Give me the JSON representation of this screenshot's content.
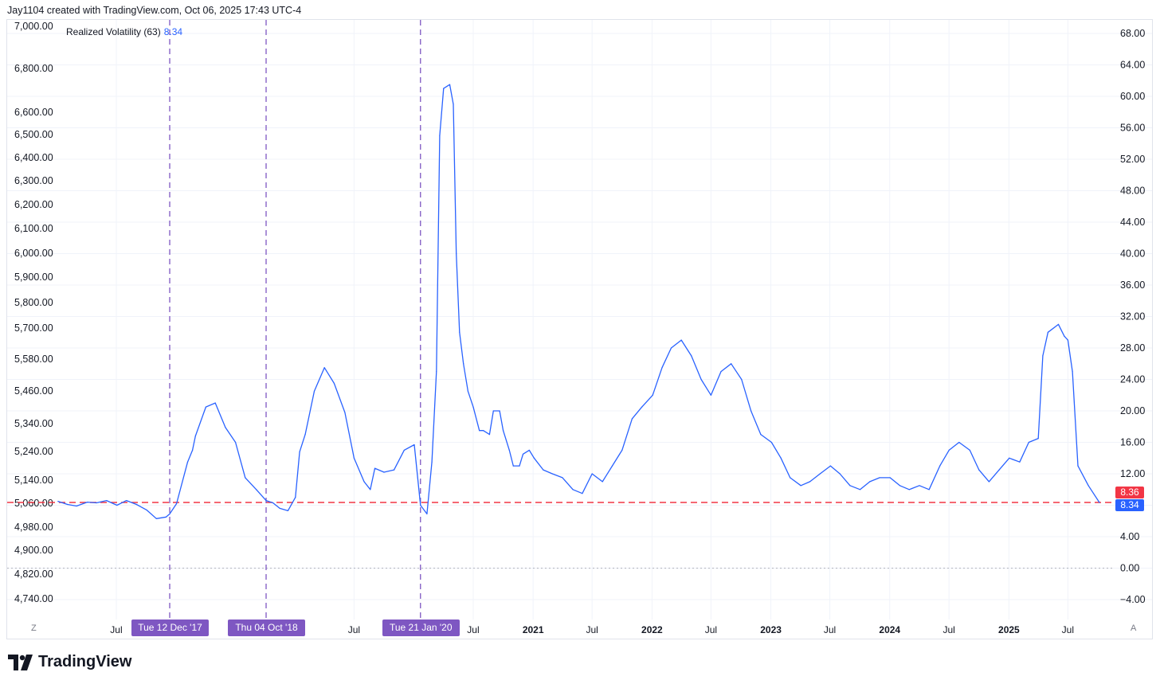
{
  "header": {
    "text": "Jay1104 created with TradingView.com, Oct 06, 2025 17:43 UTC-4"
  },
  "legend": {
    "name": "Realized Volatility (63)",
    "value": "8.34"
  },
  "brand": {
    "name": "TradingView"
  },
  "corner": {
    "left": "Z",
    "right": "A"
  },
  "colors": {
    "line": "#2962ff",
    "vline": "#7e57c2",
    "hline": "#f23645",
    "zero": "#b2b5be"
  },
  "chart_data": {
    "type": "line",
    "series": [
      {
        "name": "Realized Volatility (63)",
        "values_note": "",
        "x": [
          "2017-01-03",
          "2017-02-01",
          "2017-03-01",
          "2017-04-03",
          "2017-05-01",
          "2017-06-01",
          "2017-07-03",
          "2017-08-01",
          "2017-09-01",
          "2017-10-02",
          "2017-11-01",
          "2017-12-01",
          "2017-12-12",
          "2018-01-02",
          "2018-02-05",
          "2018-02-20",
          "2018-03-01",
          "2018-04-02",
          "2018-05-01",
          "2018-06-01",
          "2018-07-02",
          "2018-08-01",
          "2018-09-04",
          "2018-10-04",
          "2018-10-25",
          "2018-11-15",
          "2018-12-10",
          "2019-01-02",
          "2019-01-15",
          "2019-02-01",
          "2019-03-01",
          "2019-04-01",
          "2019-05-01",
          "2019-06-03",
          "2019-07-01",
          "2019-08-01",
          "2019-08-20",
          "2019-09-03",
          "2019-10-01",
          "2019-11-01",
          "2019-12-02",
          "2020-01-02",
          "2020-01-21",
          "2020-02-10",
          "2020-02-25",
          "2020-03-10",
          "2020-03-20",
          "2020-04-01",
          "2020-04-20",
          "2020-05-01",
          "2020-05-10",
          "2020-05-20",
          "2020-06-01",
          "2020-06-15",
          "2020-07-01",
          "2020-07-20",
          "2020-08-01",
          "2020-08-20",
          "2020-09-01",
          "2020-09-20",
          "2020-10-01",
          "2020-10-20",
          "2020-11-01",
          "2020-11-20",
          "2020-12-01",
          "2020-12-20",
          "2021-01-04",
          "2021-02-01",
          "2021-03-01",
          "2021-04-01",
          "2021-05-03",
          "2021-06-01",
          "2021-07-01",
          "2021-08-02",
          "2021-09-01",
          "2021-10-01",
          "2021-11-01",
          "2021-12-01",
          "2022-01-03",
          "2022-02-01",
          "2022-03-01",
          "2022-04-01",
          "2022-05-02",
          "2022-06-01",
          "2022-07-01",
          "2022-08-01",
          "2022-09-01",
          "2022-10-03",
          "2022-11-01",
          "2022-12-01",
          "2023-01-03",
          "2023-02-01",
          "2023-03-01",
          "2023-04-03",
          "2023-05-01",
          "2023-06-01",
          "2023-07-03",
          "2023-08-01",
          "2023-09-01",
          "2023-10-02",
          "2023-11-01",
          "2023-12-01",
          "2024-01-02",
          "2024-02-01",
          "2024-03-01",
          "2024-04-01",
          "2024-05-01",
          "2024-06-03",
          "2024-07-01",
          "2024-08-01",
          "2024-09-03",
          "2024-10-01",
          "2024-11-01",
          "2024-12-02",
          "2025-01-02",
          "2025-02-03",
          "2025-03-03",
          "2025-04-01",
          "2025-04-15",
          "2025-05-01",
          "2025-06-02",
          "2025-06-20",
          "2025-07-01",
          "2025-07-15",
          "2025-08-01",
          "2025-09-02",
          "2025-10-06"
        ],
        "values": [
          8.5,
          8.1,
          7.9,
          8.4,
          8.3,
          8.6,
          8.0,
          8.6,
          8.1,
          7.4,
          6.3,
          6.5,
          6.9,
          8.2,
          13.5,
          15.0,
          16.8,
          20.5,
          21.0,
          17.9,
          16.0,
          11.5,
          10.0,
          8.6,
          8.3,
          7.6,
          7.3,
          9.0,
          14.8,
          17.0,
          22.5,
          25.5,
          23.5,
          19.8,
          14.0,
          11.0,
          10.0,
          12.7,
          12.2,
          12.5,
          15.0,
          15.7,
          8.0,
          6.9,
          13.5,
          25.0,
          55.0,
          61.0,
          61.5,
          59.0,
          40.0,
          30.0,
          26.0,
          22.5,
          20.5,
          17.5,
          17.5,
          17.0,
          20.0,
          20.0,
          17.5,
          15.0,
          13.0,
          13.0,
          14.5,
          15.0,
          14.0,
          12.5,
          12.0,
          11.5,
          10.0,
          9.5,
          12.0,
          11.0,
          13.0,
          15.0,
          19.0,
          20.5,
          22.0,
          25.5,
          28.0,
          29.0,
          27.0,
          24.0,
          22.0,
          25.0,
          26.0,
          24.0,
          20.0,
          17.0,
          16.0,
          14.0,
          11.5,
          10.5,
          11.0,
          12.0,
          13.0,
          12.0,
          10.5,
          10.0,
          11.0,
          11.5,
          11.5,
          10.5,
          10.0,
          10.5,
          10.0,
          13.0,
          15.0,
          16.0,
          15.0,
          12.5,
          11.0,
          12.5,
          14.0,
          13.5,
          16.0,
          16.5,
          27.0,
          30.0,
          31.0,
          29.5,
          29.0,
          25.0,
          13.0,
          10.5,
          8.34
        ]
      }
    ],
    "left_axis_ticks": [
      "7,000.00",
      "6,800.00",
      "6,600.00",
      "6,500.00",
      "6,400.00",
      "6,300.00",
      "6,200.00",
      "6,100.00",
      "6,000.00",
      "5,900.00",
      "5,800.00",
      "5,700.00",
      "5,580.00",
      "5,460.00",
      "5,340.00",
      "5,240.00",
      "5,140.00",
      "5,060.00",
      "4,980.00",
      "4,900.00",
      "4,820.00",
      "4,740.00"
    ],
    "right_axis_ticks": [
      68,
      64,
      60,
      56,
      52,
      48,
      44,
      40,
      36,
      32,
      28,
      24,
      20,
      16,
      12,
      8,
      4,
      0,
      -4
    ],
    "right_axis_tick_labels": [
      "68.00",
      "64.00",
      "60.00",
      "56.00",
      "52.00",
      "48.00",
      "44.00",
      "40.00",
      "36.00",
      "32.00",
      "28.00",
      "24.00",
      "20.00",
      "16.00",
      "12.00",
      "8.00",
      "4.00",
      "0.00",
      "−4.00"
    ],
    "x_ticks": [
      {
        "label": "Jul",
        "date": "2017-07-01",
        "bold": false
      },
      {
        "label": "Jul",
        "date": "2019-07-01",
        "bold": false
      },
      {
        "label": "Jul",
        "date": "2020-07-01",
        "bold": false
      },
      {
        "label": "2021",
        "date": "2021-01-01",
        "bold": true
      },
      {
        "label": "Jul",
        "date": "2021-07-01",
        "bold": false
      },
      {
        "label": "2022",
        "date": "2022-01-01",
        "bold": true
      },
      {
        "label": "Jul",
        "date": "2022-07-01",
        "bold": false
      },
      {
        "label": "2023",
        "date": "2023-01-01",
        "bold": true
      },
      {
        "label": "Jul",
        "date": "2023-07-01",
        "bold": false
      },
      {
        "label": "2024",
        "date": "2024-01-01",
        "bold": true
      },
      {
        "label": "Jul",
        "date": "2024-07-01",
        "bold": false
      },
      {
        "label": "2025",
        "date": "2025-01-01",
        "bold": true
      },
      {
        "label": "Jul",
        "date": "2025-07-01",
        "bold": false
      }
    ],
    "vertical_markers": [
      {
        "date": "2017-12-12",
        "label": "Tue 12 Dec '17"
      },
      {
        "date": "2018-10-04",
        "label": "Thu 04 Oct '18"
      },
      {
        "date": "2020-01-21",
        "label": "Tue 21 Jan '20"
      }
    ],
    "hidden_tick_fragment": "9",
    "horizontal_level": {
      "value": 8.36,
      "label": "8.36"
    },
    "last_value": {
      "value": 8.34,
      "label": "8.34"
    },
    "zero_line": 0,
    "ylim_right": [
      -6,
      70
    ],
    "grid": true
  }
}
